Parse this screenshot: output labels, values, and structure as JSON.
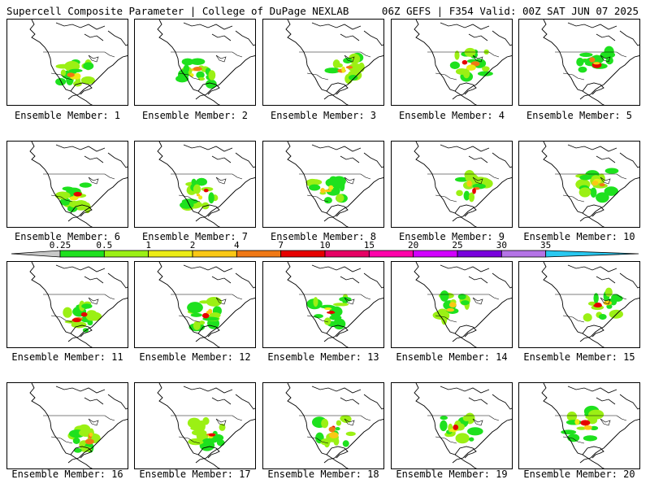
{
  "header": {
    "left": "Supercell Composite Parameter | College of DuPage NEXLAB",
    "right": "06Z GEFS | F354 Valid: 00Z SAT JUN 07 2025"
  },
  "panels": [
    {
      "label": "Ensemble Member: 1"
    },
    {
      "label": "Ensemble Member: 2"
    },
    {
      "label": "Ensemble Member: 3"
    },
    {
      "label": "Ensemble Member: 4"
    },
    {
      "label": "Ensemble Member: 5"
    },
    {
      "label": "Ensemble Member: 6"
    },
    {
      "label": "Ensemble Member: 7"
    },
    {
      "label": "Ensemble Member: 8"
    },
    {
      "label": "Ensemble Member: 9"
    },
    {
      "label": "Ensemble Member: 10"
    },
    {
      "label": "Ensemble Member: 11"
    },
    {
      "label": "Ensemble Member: 12"
    },
    {
      "label": "Ensemble Member: 13"
    },
    {
      "label": "Ensemble Member: 14"
    },
    {
      "label": "Ensemble Member: 15"
    },
    {
      "label": "Ensemble Member: 16"
    },
    {
      "label": "Ensemble Member: 17"
    },
    {
      "label": "Ensemble Member: 18"
    },
    {
      "label": "Ensemble Member: 19"
    },
    {
      "label": "Ensemble Member: 20"
    }
  ],
  "colorbar": {
    "ticks": [
      "0.25",
      "0.5",
      "1",
      "2",
      "4",
      "7",
      "10",
      "15",
      "20",
      "25",
      "30",
      "35"
    ],
    "colors": [
      "#c8c8c8",
      "#1ee11e",
      "#9bf014",
      "#ecec14",
      "#fac814",
      "#f07814",
      "#e60000",
      "#e60064",
      "#ff00aa",
      "#d200ff",
      "#7800dc",
      "#b473e6",
      "#28c8f0"
    ]
  },
  "colors": {
    "coastline": "#000000",
    "border": "#000000",
    "background": "#ffffff"
  }
}
